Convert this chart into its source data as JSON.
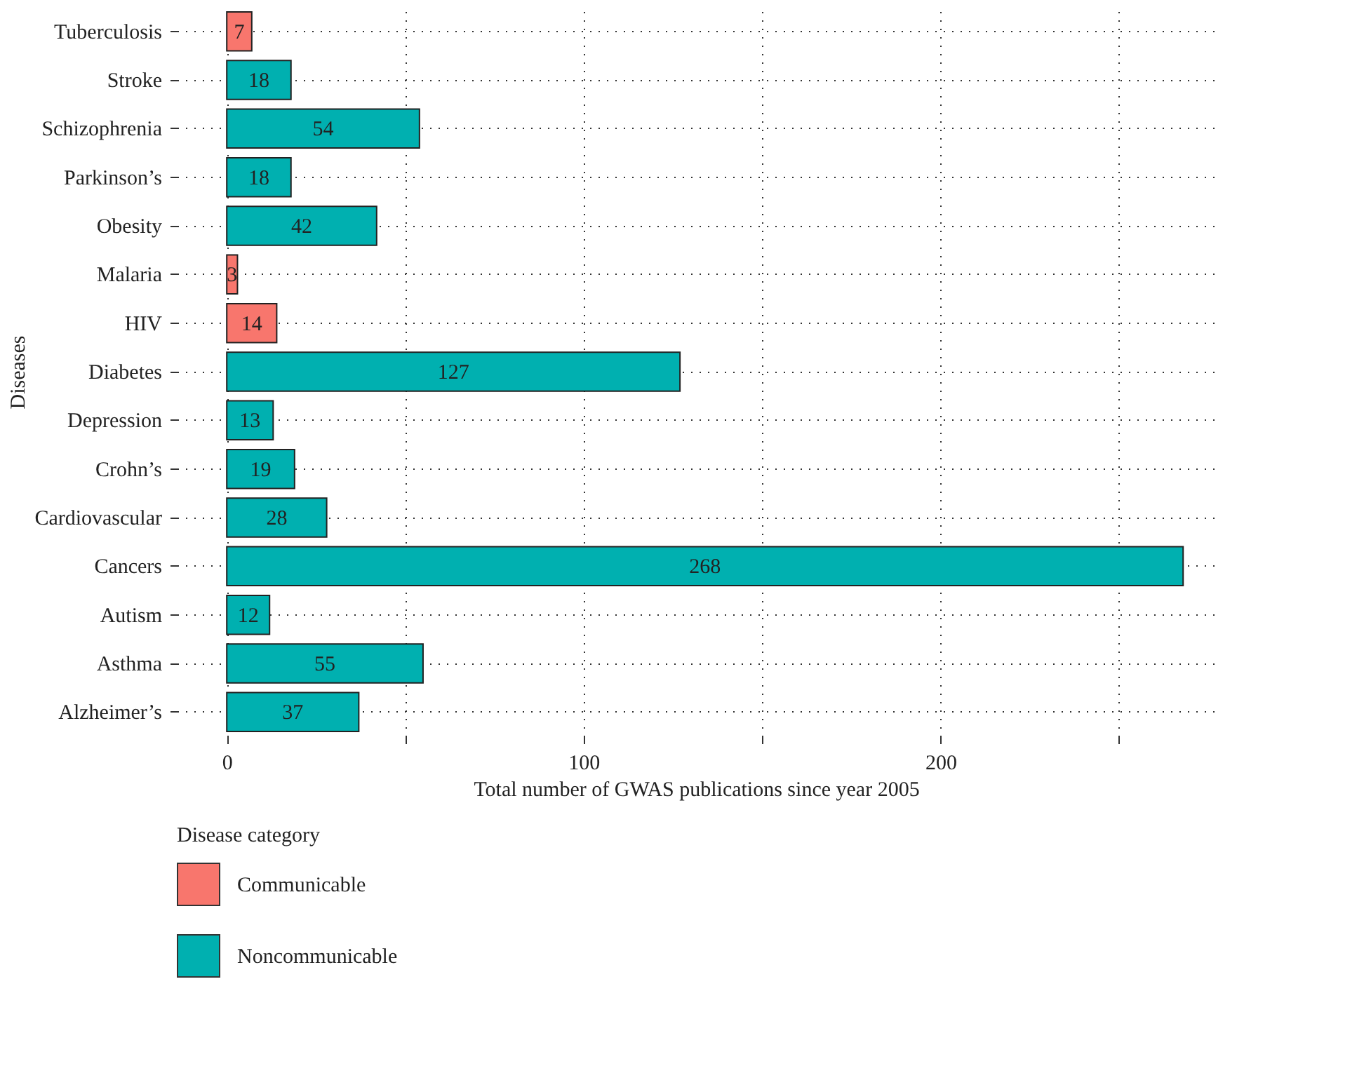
{
  "chart_data": {
    "type": "bar",
    "orientation": "horizontal",
    "categories": [
      "Tuberculosis",
      "Stroke",
      "Schizophrenia",
      "Parkinson’s",
      "Obesity",
      "Malaria",
      "HIV",
      "Diabetes",
      "Depression",
      "Crohn’s",
      "Cardiovascular",
      "Cancers",
      "Autism",
      "Asthma",
      "Alzheimer’s"
    ],
    "series": [
      {
        "name": "Communicable",
        "color": "#f8766d",
        "values": [
          7,
          null,
          null,
          null,
          null,
          3,
          14,
          null,
          null,
          null,
          null,
          null,
          null,
          null,
          null
        ]
      },
      {
        "name": "Noncommunicable",
        "color": "#00b0b0",
        "values": [
          null,
          18,
          54,
          18,
          42,
          null,
          null,
          127,
          13,
          19,
          28,
          268,
          12,
          55,
          37
        ]
      }
    ],
    "xlabel": "Total number of GWAS publications since year 2005",
    "ylabel": "Diseases",
    "legend_title": "Disease category",
    "xlim": [
      -14,
      277
    ],
    "xticks": [
      0,
      {
        "value": 50,
        "label": null
      },
      100,
      {
        "value": 150,
        "label": null
      },
      200,
      {
        "value": 250,
        "label": null
      }
    ],
    "grid": true,
    "legend": "bottom left",
    "data_labels": true
  }
}
